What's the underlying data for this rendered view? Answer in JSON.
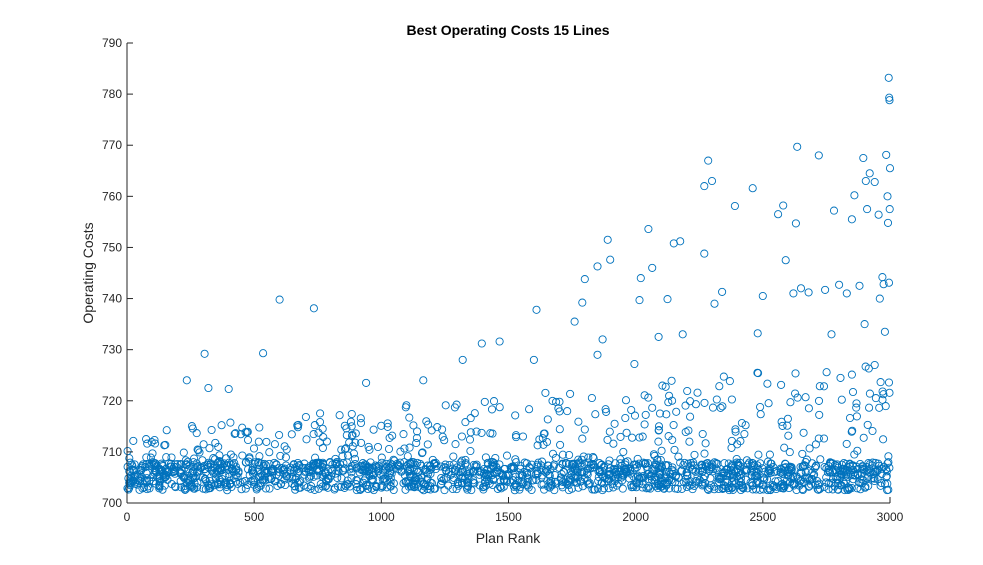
{
  "chart_data": {
    "type": "scatter",
    "title": "Best Operating Costs 15 Lines",
    "xlabel": "Plan Rank",
    "ylabel": "Operating Costs",
    "xlim": [
      0,
      3000
    ],
    "ylim": [
      700,
      790
    ],
    "xticks": [
      0,
      500,
      1000,
      1500,
      2000,
      2500,
      3000
    ],
    "yticks": [
      700,
      710,
      720,
      730,
      740,
      750,
      760,
      770,
      780,
      790
    ],
    "grid": false,
    "marker": "circle-open",
    "color": "#0072bd",
    "points_note_count": 3000,
    "points": [
      [
        305,
        729.2
      ],
      [
        235,
        724.0
      ],
      [
        600,
        739.8
      ],
      [
        535,
        729.3
      ],
      [
        735,
        738.1
      ],
      [
        400,
        722.3
      ],
      [
        320,
        722.5
      ],
      [
        940,
        723.5
      ],
      [
        1165,
        724.0
      ],
      [
        1320,
        728.0
      ],
      [
        1395,
        731.2
      ],
      [
        1465,
        731.6
      ],
      [
        1610,
        737.8
      ],
      [
        1600,
        728.0
      ],
      [
        1760,
        735.5
      ],
      [
        1800,
        743.8
      ],
      [
        1790,
        739.2
      ],
      [
        1850,
        746.3
      ],
      [
        1890,
        751.5
      ],
      [
        1900,
        747.6
      ],
      [
        1850,
        729.0
      ],
      [
        1870,
        732.0
      ],
      [
        1995,
        727.2
      ],
      [
        2015,
        739.7
      ],
      [
        2020,
        744.0
      ],
      [
        2050,
        753.6
      ],
      [
        2065,
        746.0
      ],
      [
        2090,
        732.5
      ],
      [
        2125,
        739.9
      ],
      [
        2150,
        750.8
      ],
      [
        2175,
        751.2
      ],
      [
        2185,
        733.0
      ],
      [
        2270,
        762.0
      ],
      [
        2285,
        767.0
      ],
      [
        2300,
        763.0
      ],
      [
        2270,
        748.8
      ],
      [
        2310,
        739.0
      ],
      [
        2340,
        741.3
      ],
      [
        2390,
        758.1
      ],
      [
        2460,
        761.6
      ],
      [
        2500,
        740.5
      ],
      [
        2480,
        733.2
      ],
      [
        2560,
        756.5
      ],
      [
        2580,
        758.2
      ],
      [
        2590,
        747.5
      ],
      [
        2620,
        741.0
      ],
      [
        2635,
        769.7
      ],
      [
        2630,
        754.7
      ],
      [
        2650,
        742.0
      ],
      [
        2680,
        741.2
      ],
      [
        2720,
        768.0
      ],
      [
        2745,
        741.7
      ],
      [
        2770,
        733.0
      ],
      [
        2780,
        757.2
      ],
      [
        2800,
        742.7
      ],
      [
        2830,
        741.0
      ],
      [
        2850,
        755.5
      ],
      [
        2860,
        760.2
      ],
      [
        2880,
        742.5
      ],
      [
        2895,
        767.5
      ],
      [
        2905,
        763.0
      ],
      [
        2910,
        757.5
      ],
      [
        2920,
        764.5
      ],
      [
        2940,
        762.8
      ],
      [
        2955,
        756.4
      ],
      [
        2970,
        744.2
      ],
      [
        2975,
        742.8
      ],
      [
        2985,
        768.1
      ],
      [
        2990,
        760.0
      ],
      [
        2992,
        754.8
      ],
      [
        2995,
        783.2
      ],
      [
        2997,
        779.3
      ],
      [
        2998,
        778.8
      ],
      [
        3000,
        765.5
      ],
      [
        2999,
        757.5
      ],
      [
        2996,
        743.1
      ],
      [
        2980,
        733.5
      ],
      [
        2940,
        727.0
      ],
      [
        2960,
        740.0
      ],
      [
        2900,
        735.0
      ]
    ]
  }
}
